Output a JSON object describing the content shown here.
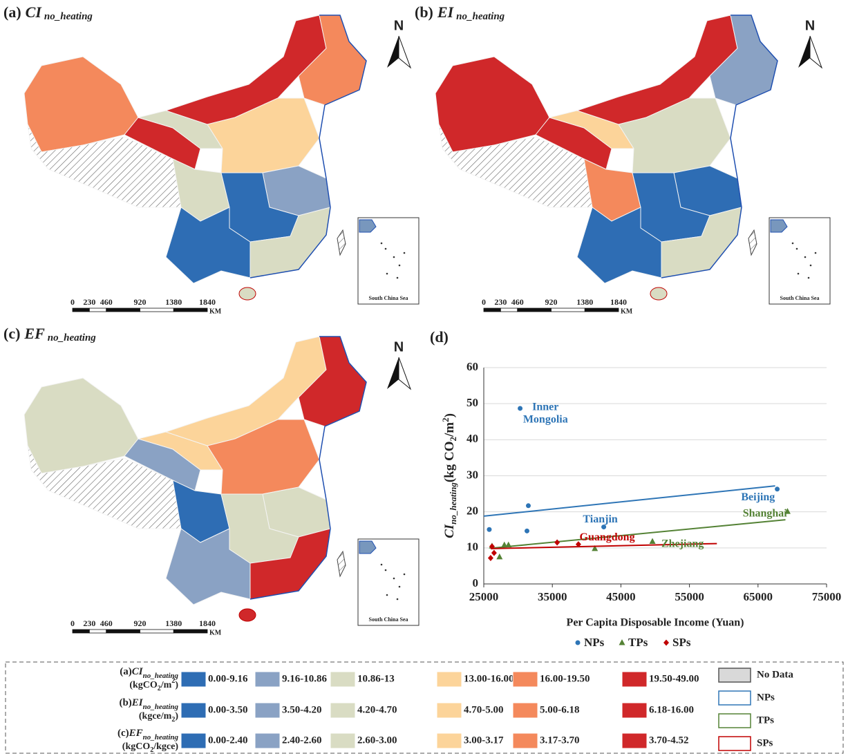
{
  "panels": [
    {
      "label": "(a)",
      "var": "CI",
      "sub": "no_heating"
    },
    {
      "label": "(b)",
      "var": "EI",
      "sub": "no_heating"
    },
    {
      "label": "(c)",
      "var": "EF",
      "sub": "no_heating"
    }
  ],
  "north": "N",
  "inset_label": "South China Sea",
  "scale_bar": {
    "ticks": [
      0,
      230,
      460,
      920,
      1380,
      1840
    ],
    "unit": "KM"
  },
  "legend": {
    "colors": [
      "#2e6db4",
      "#8aa2c4",
      "#d9dcc3",
      "#fcd49a",
      "#f4895c",
      "#d0282a"
    ],
    "rows": [
      {
        "label": "(a)",
        "var": "CI",
        "sub": "no_heating",
        "unit": [
          "(kgCO",
          "2",
          "/m",
          "2",
          ")"
        ],
        "classes": [
          "0.00-9.16",
          "9.16-10.86",
          "10.86-13",
          "13.00-16.00",
          "16.00-19.50",
          "19.50-49.00"
        ]
      },
      {
        "label": "(b)",
        "var": "EI",
        "sub": "no_heating",
        "unit": [
          "(kgce/m",
          "2",
          ")"
        ],
        "classes": [
          "0.00-3.50",
          "3.50-4.20",
          "4.20-4.70",
          "4.70-5.00",
          "5.00-6.18",
          "6.18-16.00"
        ]
      },
      {
        "label": "(c)",
        "var": "EF",
        "sub": "no_heating",
        "unit": [
          "(kgCO",
          "2",
          "/kgce)"
        ],
        "classes": [
          "0.00-2.40",
          "2.40-2.60",
          "2.60-3.00",
          "3.00-3.17",
          "3.17-3.70",
          "3.70-4.52"
        ]
      }
    ],
    "other": [
      {
        "name": "No Data",
        "fill": "#d9d9d9",
        "stroke": "#555555"
      },
      {
        "name": "NPs",
        "fill": "#ffffff",
        "stroke": "#2e75b6"
      },
      {
        "name": "TPs",
        "fill": "#ffffff",
        "stroke": "#548235"
      },
      {
        "name": "SPs",
        "fill": "#ffffff",
        "stroke": "#c00000"
      }
    ]
  },
  "chart_data": {
    "type": "scatter",
    "title": "(d)",
    "x_label": "Per Capita Disposable Income (Yuan)",
    "y_label": {
      "var": "CI",
      "sub": "no_heating",
      "unit": [
        "(kg CO",
        "2",
        "/m",
        "2",
        ")"
      ]
    },
    "xlim": [
      25000,
      75000
    ],
    "xticks": [
      25000,
      35000,
      45000,
      55000,
      65000,
      75000
    ],
    "ylim": [
      0,
      60
    ],
    "yticks": [
      0,
      10,
      20,
      30,
      40,
      50,
      60
    ],
    "grid": true,
    "series": [
      {
        "name": "NPs",
        "color": "#2e75b6",
        "marker": "circle",
        "x": [
          25800,
          30300,
          31500,
          31300,
          42500,
          67800
        ],
        "y": [
          15.1,
          48.7,
          21.7,
          14.7,
          15.8,
          26.3
        ],
        "trend": {
          "x": [
            25000,
            67500
          ],
          "y": [
            18.8,
            27.2
          ]
        }
      },
      {
        "name": "TPs",
        "color": "#548235",
        "marker": "triangle",
        "x": [
          26200,
          27300,
          28000,
          28600,
          41200,
          49600,
          69300
        ],
        "y": [
          10.5,
          7.5,
          10.8,
          10.8,
          9.8,
          11.8,
          20.1
        ],
        "trend": {
          "x": [
            26500,
            69000
          ],
          "y": [
            10,
            17.8
          ]
        }
      },
      {
        "name": "SPs",
        "color": "#c00000",
        "marker": "diamond",
        "x": [
          26000,
          26500,
          26200,
          35700,
          38800
        ],
        "y": [
          7.2,
          8.6,
          10.4,
          11.5,
          11.0
        ],
        "trend": {
          "x": [
            26000,
            59000
          ],
          "y": [
            9.8,
            11.2
          ]
        }
      }
    ],
    "annotations": [
      {
        "text": [
          "Inner",
          "Mongolia"
        ],
        "x": 34000,
        "y": 49,
        "color": "#2e75b6"
      },
      {
        "text": [
          "Beijing"
        ],
        "x": 65000,
        "y": 24,
        "color": "#2e75b6"
      },
      {
        "text": [
          "Tianjin"
        ],
        "x": 42000,
        "y": 17.8,
        "color": "#2e75b6"
      },
      {
        "text": [
          "Shanghai"
        ],
        "x": 66000,
        "y": 19.5,
        "color": "#548235"
      },
      {
        "text": [
          "Guangdong"
        ],
        "x": 43000,
        "y": 12.8,
        "color": "#c00000"
      },
      {
        "text": [
          "Zhejiang"
        ],
        "x": 54000,
        "y": 11,
        "color": "#548235"
      }
    ]
  }
}
